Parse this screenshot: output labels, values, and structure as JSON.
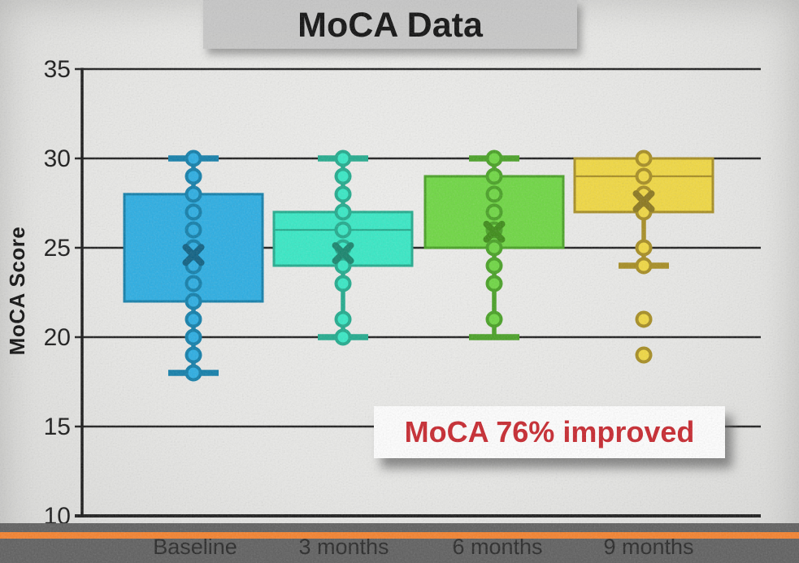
{
  "title": "MoCA Data",
  "y_axis": {
    "label": "MoCA Score",
    "tick_labels": [
      "35",
      "30",
      "25",
      "20",
      "15",
      "10"
    ]
  },
  "annotation": {
    "text": "MoCA 76% improved",
    "text_color": "#C7242B",
    "bg_color": "#FFFFFF"
  },
  "footer": {
    "labels": [
      "Baseline",
      "3 months",
      "6 months",
      "9 months"
    ],
    "accent_color": "#F5812C",
    "bar_color": "#5E5E5E"
  },
  "chart_data": {
    "type": "boxplot",
    "title": "MoCA Data",
    "xlabel": "",
    "ylabel": "MoCA Score",
    "ylim": [
      10,
      35
    ],
    "yticks": [
      10,
      15,
      20,
      25,
      30,
      35
    ],
    "grid": true,
    "legend": false,
    "categories": [
      "Baseline",
      "3 months",
      "6 months",
      "9 months"
    ],
    "series": [
      {
        "name": "Baseline",
        "q1": 22,
        "median": null,
        "q3": 28,
        "whisker_low": 18,
        "whisker_high": 30,
        "mean": 24.6,
        "points": [
          30,
          29,
          28,
          27,
          26,
          25,
          24,
          23,
          22,
          21,
          20,
          19,
          18
        ],
        "outliers": [],
        "fill": "#29ADE3",
        "stroke": "#0F7DA9",
        "mean_color": "#0B5E81"
      },
      {
        "name": "3 months",
        "q1": 24,
        "median": 26,
        "q3": 27,
        "whisker_low": 20,
        "whisker_high": 30,
        "mean": 24.7,
        "points": [
          30,
          29,
          28,
          27,
          26,
          25,
          24,
          23,
          21,
          20
        ],
        "outliers": [],
        "fill": "#35E9C5",
        "stroke": "#1FAA8C",
        "mean_color": "#14836B"
      },
      {
        "name": "6 months",
        "q1": 25,
        "median": null,
        "q3": 29,
        "whisker_low": 20,
        "whisker_high": 30,
        "mean": 25.9,
        "points": [
          30,
          29,
          28,
          27,
          26,
          25,
          24,
          23,
          21
        ],
        "outliers": [],
        "fill": "#6DD741",
        "stroke": "#46A022",
        "mean_color": "#3A8A14"
      },
      {
        "name": "9 months",
        "q1": 27,
        "median": 29,
        "q3": 30,
        "whisker_low": 24,
        "whisker_high": 30,
        "mean": 27.6,
        "points": [
          30,
          29,
          28,
          27,
          25,
          24
        ],
        "outliers": [
          21,
          19
        ],
        "fill": "#F1D840",
        "stroke": "#A68C20",
        "mean_color": "#8A761B"
      }
    ]
  }
}
